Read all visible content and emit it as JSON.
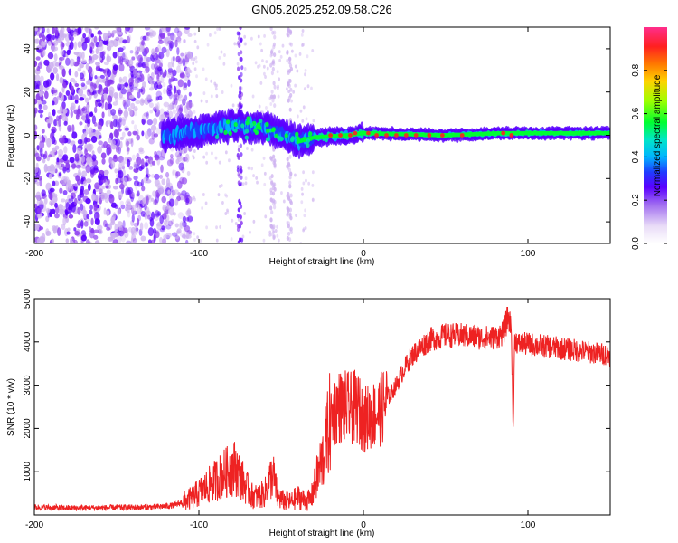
{
  "figure": {
    "title": "GN05.2025.252.09.58.C26"
  },
  "colors": {
    "snr_line": "#ee2222",
    "colormap": [
      "#f4ecf7",
      "#cdb1f0",
      "#8c3cf0",
      "#5a00ff",
      "#1f3cff",
      "#00b4ff",
      "#00e6a0",
      "#00ff30",
      "#a0ff00",
      "#ffd200",
      "#ff7800",
      "#ff2020",
      "#ff2e8c"
    ]
  },
  "chart_data": [
    {
      "type": "heatmap",
      "xlabel": "Height of straight line (km)",
      "ylabel": "Frequency (Hz)",
      "xlim": [
        -200,
        150
      ],
      "ylim": [
        -50,
        50
      ],
      "xticks": [
        -200,
        -100,
        0,
        100
      ],
      "yticks": [
        -40,
        -20,
        0,
        20,
        40
      ],
      "colorbar": {
        "label": "Normalized spectral amplitude",
        "range": [
          0.0,
          1.0
        ],
        "ticks": [
          0.0,
          0.2,
          0.4,
          0.6,
          0.8
        ]
      },
      "band_centroid": [
        {
          "x": -120,
          "y": 0
        },
        {
          "x": -100,
          "y": 2
        },
        {
          "x": -80,
          "y": 5
        },
        {
          "x": -65,
          "y": 4
        },
        {
          "x": -50,
          "y": 1
        },
        {
          "x": -40,
          "y": -3
        },
        {
          "x": -30,
          "y": -1
        },
        {
          "x": -10,
          "y": 0
        },
        {
          "x": 0,
          "y": 1
        },
        {
          "x": 50,
          "y": 0
        },
        {
          "x": 85,
          "y": 1
        },
        {
          "x": 150,
          "y": 1
        }
      ],
      "noise_region": {
        "x_from": -200,
        "x_to": -105
      },
      "vertical_streaks_x": [
        -75,
        -55,
        -45
      ]
    },
    {
      "type": "line",
      "xlabel": "Height of straight line (km)",
      "ylabel": "SNR (10 * v/v)",
      "xlim": [
        -200,
        150
      ],
      "ylim": [
        0,
        5000
      ],
      "xticks": [
        -200,
        -100,
        0,
        100
      ],
      "yticks": [
        1000,
        2000,
        3000,
        4000,
        5000
      ],
      "series": [
        {
          "x": [
            -200,
            -175,
            -150,
            -130,
            -115,
            -105,
            -95,
            -85,
            -78,
            -72,
            -68,
            -64,
            -60,
            -57,
            -55,
            -52,
            -48,
            -44,
            -40,
            -35,
            -32,
            -28,
            -24,
            -20,
            -16,
            -12,
            -8,
            -4,
            0,
            5,
            10,
            15,
            20,
            25,
            30,
            40,
            50,
            60,
            70,
            80,
            85,
            88,
            90,
            91,
            92,
            94,
            100,
            110,
            120,
            130,
            140,
            150
          ],
          "y": [
            180,
            160,
            170,
            180,
            220,
            380,
            650,
            950,
            1100,
            700,
            450,
            420,
            500,
            800,
            950,
            400,
            320,
            300,
            420,
            330,
            350,
            900,
            1400,
            2200,
            2500,
            2500,
            2450,
            2500,
            2200,
            2300,
            2400,
            2700,
            3000,
            3400,
            3700,
            4050,
            4150,
            4150,
            4100,
            4100,
            4200,
            4600,
            4300,
            1900,
            4100,
            3950,
            3950,
            3900,
            3850,
            3800,
            3750,
            3700
          ]
        }
      ]
    }
  ]
}
